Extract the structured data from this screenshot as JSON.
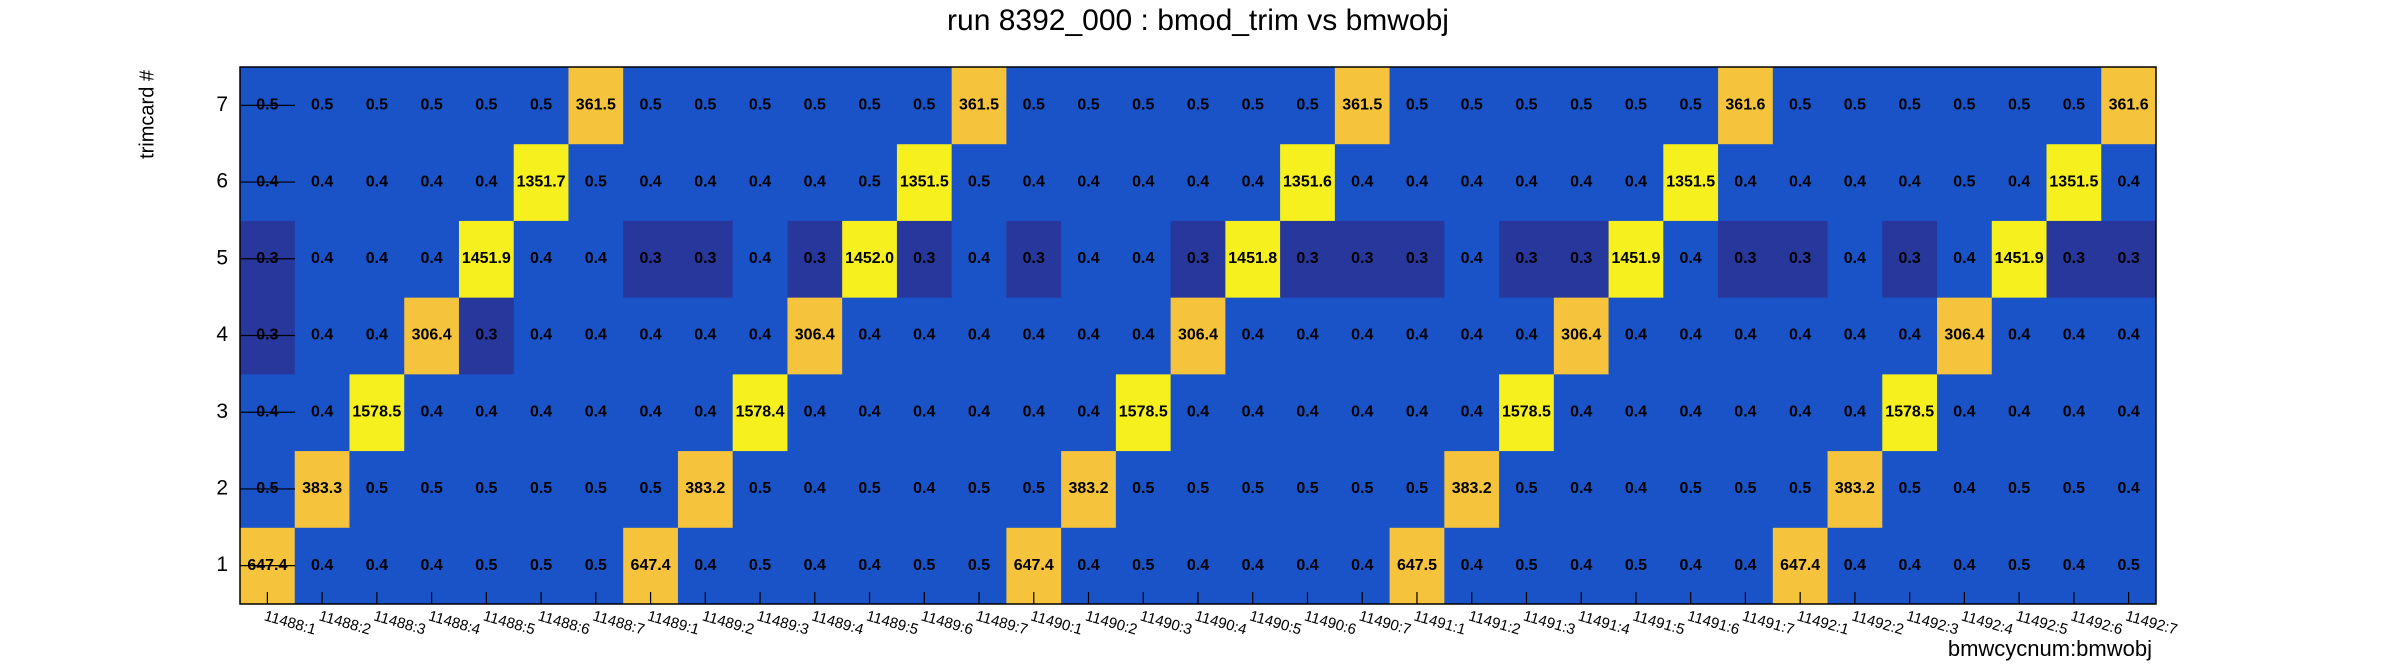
{
  "chart_data": {
    "type": "heatmap",
    "title": "run 8392_000 : bmod_trim vs bmwobj",
    "x_label": "bmwcycnum:bmwobj",
    "y_label": "trimcard #",
    "x_categories": [
      "11488:1",
      "11488:2",
      "11488:3",
      "11488:4",
      "11488:5",
      "11488:6",
      "11488:7",
      "11489:1",
      "11489:2",
      "11489:3",
      "11489:4",
      "11489:5",
      "11489:6",
      "11489:7",
      "11490:1",
      "11490:2",
      "11490:3",
      "11490:4",
      "11490:5",
      "11490:6",
      "11490:7",
      "11491:1",
      "11491:2",
      "11491:3",
      "11491:4",
      "11491:5",
      "11491:6",
      "11491:7",
      "11492:1",
      "11492:2",
      "11492:3",
      "11492:4",
      "11492:5",
      "11492:6",
      "11492:7"
    ],
    "y_categories": [
      1,
      2,
      3,
      4,
      5,
      6,
      7
    ],
    "values": [
      [
        647.4,
        0.4,
        0.4,
        0.4,
        0.5,
        0.5,
        0.5,
        647.4,
        0.4,
        0.5,
        0.4,
        0.4,
        0.5,
        0.5,
        647.4,
        0.4,
        0.5,
        0.4,
        0.4,
        0.4,
        0.4,
        647.5,
        0.4,
        0.5,
        0.4,
        0.5,
        0.4,
        0.4,
        647.4,
        0.4,
        0.4,
        0.4,
        0.5,
        0.4,
        0.5
      ],
      [
        0.5,
        383.3,
        0.5,
        0.5,
        0.5,
        0.5,
        0.5,
        0.5,
        383.2,
        0.5,
        0.4,
        0.5,
        0.4,
        0.5,
        0.5,
        383.2,
        0.5,
        0.5,
        0.5,
        0.5,
        0.5,
        0.5,
        383.2,
        0.5,
        0.4,
        0.4,
        0.5,
        0.5,
        0.5,
        383.2,
        0.5,
        0.4,
        0.5,
        0.5,
        0.4
      ],
      [
        0.4,
        0.4,
        1578.5,
        0.4,
        0.4,
        0.4,
        0.4,
        0.4,
        0.4,
        1578.4,
        0.4,
        0.4,
        0.4,
        0.4,
        0.4,
        0.4,
        1578.5,
        0.4,
        0.4,
        0.4,
        0.4,
        0.4,
        0.4,
        1578.5,
        0.4,
        0.4,
        0.4,
        0.4,
        0.4,
        0.4,
        1578.5,
        0.4,
        0.4,
        0.4,
        0.4
      ],
      [
        0.3,
        0.4,
        0.4,
        306.4,
        0.3,
        0.4,
        0.4,
        0.4,
        0.4,
        0.4,
        306.4,
        0.4,
        0.4,
        0.4,
        0.4,
        0.4,
        0.4,
        306.4,
        0.4,
        0.4,
        0.4,
        0.4,
        0.4,
        0.4,
        306.4,
        0.4,
        0.4,
        0.4,
        0.4,
        0.4,
        0.4,
        306.4,
        0.4,
        0.4,
        0.4
      ],
      [
        0.3,
        0.4,
        0.4,
        0.4,
        1451.9,
        0.4,
        0.4,
        0.3,
        0.3,
        0.4,
        0.3,
        1452.0,
        0.3,
        0.4,
        0.3,
        0.4,
        0.4,
        0.3,
        1451.8,
        0.3,
        0.3,
        0.3,
        0.4,
        0.3,
        0.3,
        1451.9,
        0.4,
        0.3,
        0.3,
        0.4,
        0.3,
        0.4,
        1451.9,
        0.3,
        0.3
      ],
      [
        0.4,
        0.4,
        0.4,
        0.4,
        0.4,
        1351.7,
        0.5,
        0.4,
        0.4,
        0.4,
        0.4,
        0.5,
        1351.5,
        0.5,
        0.4,
        0.4,
        0.4,
        0.4,
        0.4,
        1351.6,
        0.4,
        0.4,
        0.4,
        0.4,
        0.4,
        0.4,
        1351.5,
        0.4,
        0.4,
        0.4,
        0.4,
        0.5,
        0.4,
        1351.5,
        0.4
      ],
      [
        0.5,
        0.5,
        0.5,
        0.5,
        0.5,
        0.5,
        361.5,
        0.5,
        0.5,
        0.5,
        0.5,
        0.5,
        0.5,
        361.5,
        0.5,
        0.5,
        0.5,
        0.5,
        0.5,
        0.5,
        361.5,
        0.5,
        0.5,
        0.5,
        0.5,
        0.5,
        0.5,
        361.6,
        0.5,
        0.5,
        0.5,
        0.5,
        0.5,
        0.5,
        361.6
      ]
    ],
    "value_labels": [
      [
        "647.4",
        "0.4",
        "0.4",
        "0.4",
        "0.5",
        "0.5",
        "0.5",
        "647.4",
        "0.4",
        "0.5",
        "0.4",
        "0.4",
        "0.5",
        "0.5",
        "647.4",
        "0.4",
        "0.5",
        "0.4",
        "0.4",
        "0.4",
        "0.4",
        "647.5",
        "0.4",
        "0.5",
        "0.4",
        "0.5",
        "0.4",
        "0.4",
        "647.4",
        "0.4",
        "0.4",
        "0.4",
        "0.5",
        "0.4",
        "0.5"
      ],
      [
        "0.5",
        "383.3",
        "0.5",
        "0.5",
        "0.5",
        "0.5",
        "0.5",
        "0.5",
        "383.2",
        "0.5",
        "0.4",
        "0.5",
        "0.4",
        "0.5",
        "0.5",
        "383.2",
        "0.5",
        "0.5",
        "0.5",
        "0.5",
        "0.5",
        "0.5",
        "383.2",
        "0.5",
        "0.4",
        "0.4",
        "0.5",
        "0.5",
        "0.5",
        "383.2",
        "0.5",
        "0.4",
        "0.5",
        "0.5",
        "0.4"
      ],
      [
        "0.4",
        "0.4",
        "1578.5",
        "0.4",
        "0.4",
        "0.4",
        "0.4",
        "0.4",
        "0.4",
        "1578.4",
        "0.4",
        "0.4",
        "0.4",
        "0.4",
        "0.4",
        "0.4",
        "1578.5",
        "0.4",
        "0.4",
        "0.4",
        "0.4",
        "0.4",
        "0.4",
        "1578.5",
        "0.4",
        "0.4",
        "0.4",
        "0.4",
        "0.4",
        "0.4",
        "1578.5",
        "0.4",
        "0.4",
        "0.4",
        "0.4"
      ],
      [
        "0.3",
        "0.4",
        "0.4",
        "306.4",
        "0.3",
        "0.4",
        "0.4",
        "0.4",
        "0.4",
        "0.4",
        "306.4",
        "0.4",
        "0.4",
        "0.4",
        "0.4",
        "0.4",
        "0.4",
        "306.4",
        "0.4",
        "0.4",
        "0.4",
        "0.4",
        "0.4",
        "0.4",
        "306.4",
        "0.4",
        "0.4",
        "0.4",
        "0.4",
        "0.4",
        "0.4",
        "306.4",
        "0.4",
        "0.4",
        "0.4"
      ],
      [
        "0.3",
        "0.4",
        "0.4",
        "0.4",
        "1451.9",
        "0.4",
        "0.4",
        "0.3",
        "0.3",
        "0.4",
        "0.3",
        "1452.0",
        "0.3",
        "0.4",
        "0.3",
        "0.4",
        "0.4",
        "0.3",
        "1451.8",
        "0.3",
        "0.3",
        "0.3",
        "0.4",
        "0.3",
        "0.3",
        "1451.9",
        "0.4",
        "0.3",
        "0.3",
        "0.4",
        "0.3",
        "0.4",
        "1451.9",
        "0.3",
        "0.3"
      ],
      [
        "0.4",
        "0.4",
        "0.4",
        "0.4",
        "0.4",
        "1351.7",
        "0.5",
        "0.4",
        "0.4",
        "0.4",
        "0.4",
        "0.5",
        "1351.5",
        "0.5",
        "0.4",
        "0.4",
        "0.4",
        "0.4",
        "0.4",
        "1351.6",
        "0.4",
        "0.4",
        "0.4",
        "0.4",
        "0.4",
        "0.4",
        "1351.5",
        "0.4",
        "0.4",
        "0.4",
        "0.4",
        "0.5",
        "0.4",
        "1351.5",
        "0.4"
      ],
      [
        "0.5",
        "0.5",
        "0.5",
        "0.5",
        "0.5",
        "0.5",
        "361.5",
        "0.5",
        "0.5",
        "0.5",
        "0.5",
        "0.5",
        "0.5",
        "361.5",
        "0.5",
        "0.5",
        "0.5",
        "0.5",
        "0.5",
        "0.5",
        "361.5",
        "0.5",
        "0.5",
        "0.5",
        "0.5",
        "0.5",
        "0.5",
        "361.6",
        "0.5",
        "0.5",
        "0.5",
        "0.5",
        "0.5",
        "0.5",
        "361.6"
      ]
    ]
  }
}
